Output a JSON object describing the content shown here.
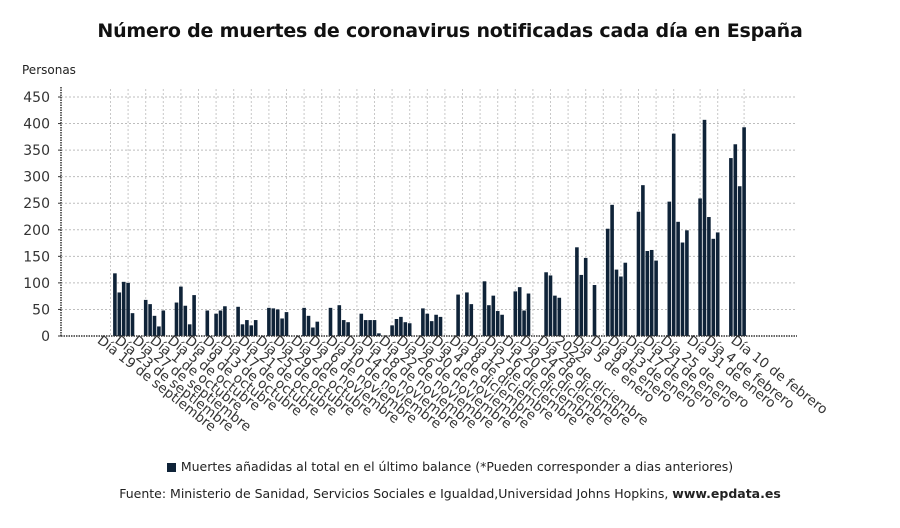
{
  "chart_data": {
    "type": "bar",
    "title": "Número de muertes de coronavirus notificadas cada día en España",
    "ylabel": "Personas",
    "xlabel": "",
    "ylim": [
      0,
      450
    ],
    "yticks": [
      0,
      50,
      100,
      150,
      200,
      250,
      300,
      350,
      400,
      450
    ],
    "grid": true,
    "legend_position": "bottom",
    "start_date": "Día 19 de septiembre",
    "x_tick_labels": [
      "Día 19 de septiembre",
      "Día 23 de septiembre",
      "Día 27 de septiembre",
      "Día 1 de octubre",
      "Día 5 de octubre",
      "Día 9 de octubre",
      "Día 13 de octubre",
      "Día 17 de octubre",
      "Día 21 de octubre",
      "Día 25 de octubre",
      "Día 29 de octubre",
      "Día 2 de noviembre",
      "Día 6 de noviembre",
      "Día 10 de noviembre",
      "Día 14 de noviembre",
      "Día 18 de noviembre",
      "Día 22 de noviembre",
      "Día 26 de noviembre",
      "Día 30 de noviembre",
      "Día 4 de diciembre",
      "Día 8 de diciembre",
      "Día 12 de diciembre",
      "Día 16 de diciembre",
      "Día 20 de diciembre",
      "Día 24 de diciembre",
      "Día 28 de diciembre",
      "2022",
      "Día 5 de enero",
      "Día 9 de enero",
      "Día 13 de enero",
      "Día 17 de enero",
      "Día 21 de enero",
      "Día 25 de enero",
      "Día 31 de enero",
      "Día 4 de febrero",
      "Día 10 de febrero"
    ],
    "x_tick_day_index": [
      0,
      4,
      8,
      12,
      16,
      20,
      24,
      28,
      32,
      36,
      40,
      44,
      48,
      52,
      56,
      60,
      64,
      68,
      72,
      76,
      80,
      84,
      88,
      92,
      96,
      100,
      104,
      108,
      112,
      116,
      120,
      124,
      128,
      134,
      138,
      144
    ],
    "series": [
      {
        "name": "Muertes añadidas al total en el último balance (*Pueden corresponder a dias anteriores)",
        "color": "#0f2338",
        "weeks_start_day_index": 1,
        "weekly_values_mon_to_fri": [
          [
            118,
            82,
            102,
            100,
            43
          ],
          [
            68,
            60,
            38,
            18,
            48
          ],
          [
            63,
            93,
            57,
            22,
            77
          ],
          [
            48,
            null,
            42,
            48,
            56
          ],
          [
            55,
            22,
            30,
            20,
            30
          ],
          [
            53,
            52,
            50,
            33,
            45
          ],
          [
            null,
            53,
            38,
            16,
            27
          ],
          [
            53,
            null,
            58,
            30,
            26
          ],
          [
            42,
            30,
            30,
            30,
            5
          ],
          [
            20,
            32,
            36,
            26,
            24
          ],
          [
            52,
            42,
            28,
            40,
            36
          ],
          [
            null,
            78,
            null,
            82,
            60
          ],
          [
            103,
            58,
            76,
            47,
            40
          ],
          [
            84,
            92,
            48,
            80,
            null
          ],
          [
            120,
            114,
            76,
            72,
            null
          ],
          [
            167,
            115,
            147,
            null,
            96
          ],
          [
            202,
            247,
            125,
            112,
            138
          ],
          [
            234,
            284,
            160,
            162,
            142
          ],
          [
            253,
            381,
            215,
            176,
            199
          ],
          [
            259,
            407,
            224,
            183,
            195
          ],
          [
            335,
            361,
            282,
            393,
            null
          ]
        ]
      }
    ]
  },
  "header": {
    "title": "Número de muertes de coronavirus notificadas cada día en España",
    "y_axis_unit": "Personas"
  },
  "legend": {
    "label": "Muertes añadidas al total en el último balance (*Pueden corresponder a dias anteriores)"
  },
  "footer": {
    "source_prefix": "Fuente: Ministerio de Sanidad, Servicios Sociales e Igualdad,Universidad Johns Hopkins, ",
    "source_site": "www.epdata.es"
  }
}
